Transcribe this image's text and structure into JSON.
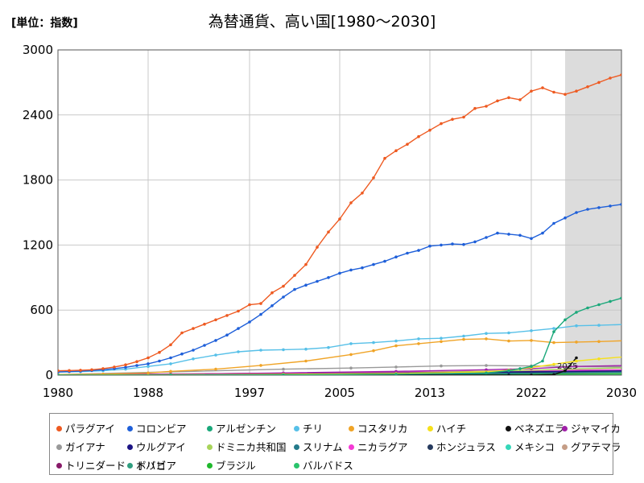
{
  "unit_label": "[単位：指数]",
  "chart_data": {
    "type": "line",
    "title": "為替通貨、高い国[1980～2030]",
    "ylim": [
      0,
      3000
    ],
    "xlim": [
      1980,
      2030
    ],
    "x_ticks": [
      "1980",
      "1988",
      "1997",
      "2005",
      "2013",
      "2022",
      "2030"
    ],
    "y_ticks": [
      "0",
      "600",
      "1200",
      "1800",
      "2400",
      "3000"
    ],
    "forecast_start": 2025,
    "forecast_label": "2025",
    "grid": true,
    "legend_position": "bottom",
    "series": [
      {
        "name": "パラグアイ",
        "color": "#ee5a21",
        "points": [
          [
            1980,
            40
          ],
          [
            1981,
            42
          ],
          [
            1982,
            45
          ],
          [
            1983,
            50
          ],
          [
            1984,
            60
          ],
          [
            1985,
            75
          ],
          [
            1986,
            95
          ],
          [
            1987,
            125
          ],
          [
            1988,
            160
          ],
          [
            1989,
            210
          ],
          [
            1990,
            280
          ],
          [
            1991,
            390
          ],
          [
            1992,
            430
          ],
          [
            1993,
            470
          ],
          [
            1994,
            510
          ],
          [
            1995,
            550
          ],
          [
            1996,
            590
          ],
          [
            1997,
            650
          ],
          [
            1998,
            660
          ],
          [
            1999,
            760
          ],
          [
            2000,
            820
          ],
          [
            2001,
            920
          ],
          [
            2002,
            1020
          ],
          [
            2003,
            1180
          ],
          [
            2004,
            1320
          ],
          [
            2005,
            1440
          ],
          [
            2006,
            1590
          ],
          [
            2007,
            1680
          ],
          [
            2008,
            1820
          ],
          [
            2009,
            2000
          ],
          [
            2010,
            2070
          ],
          [
            2011,
            2130
          ],
          [
            2012,
            2200
          ],
          [
            2013,
            2260
          ],
          [
            2014,
            2320
          ],
          [
            2015,
            2360
          ],
          [
            2016,
            2380
          ],
          [
            2017,
            2460
          ],
          [
            2018,
            2480
          ],
          [
            2019,
            2530
          ],
          [
            2020,
            2560
          ],
          [
            2021,
            2540
          ],
          [
            2022,
            2620
          ],
          [
            2023,
            2650
          ],
          [
            2024,
            2610
          ],
          [
            2025,
            2590
          ],
          [
            2026,
            2620
          ],
          [
            2027,
            2660
          ],
          [
            2028,
            2700
          ],
          [
            2029,
            2740
          ],
          [
            2030,
            2770
          ],
          [
            2031,
            2820
          ]
        ]
      },
      {
        "name": "コロンビア",
        "color": "#1e5fd9",
        "points": [
          [
            1980,
            30
          ],
          [
            1981,
            33
          ],
          [
            1982,
            37
          ],
          [
            1983,
            42
          ],
          [
            1984,
            50
          ],
          [
            1985,
            60
          ],
          [
            1986,
            72
          ],
          [
            1987,
            88
          ],
          [
            1988,
            105
          ],
          [
            1989,
            130
          ],
          [
            1990,
            160
          ],
          [
            1991,
            195
          ],
          [
            1992,
            230
          ],
          [
            1993,
            275
          ],
          [
            1994,
            320
          ],
          [
            1995,
            370
          ],
          [
            1996,
            430
          ],
          [
            1997,
            490
          ],
          [
            1998,
            560
          ],
          [
            1999,
            640
          ],
          [
            2000,
            720
          ],
          [
            2001,
            790
          ],
          [
            2002,
            830
          ],
          [
            2003,
            865
          ],
          [
            2004,
            900
          ],
          [
            2005,
            940
          ],
          [
            2006,
            970
          ],
          [
            2007,
            990
          ],
          [
            2008,
            1020
          ],
          [
            2009,
            1050
          ],
          [
            2010,
            1090
          ],
          [
            2011,
            1125
          ],
          [
            2012,
            1150
          ],
          [
            2013,
            1190
          ],
          [
            2014,
            1200
          ],
          [
            2015,
            1210
          ],
          [
            2016,
            1205
          ],
          [
            2017,
            1230
          ],
          [
            2018,
            1270
          ],
          [
            2019,
            1310
          ],
          [
            2020,
            1300
          ],
          [
            2021,
            1290
          ],
          [
            2022,
            1260
          ],
          [
            2023,
            1310
          ],
          [
            2024,
            1400
          ],
          [
            2025,
            1450
          ],
          [
            2026,
            1500
          ],
          [
            2027,
            1530
          ],
          [
            2028,
            1545
          ],
          [
            2029,
            1560
          ],
          [
            2030,
            1575
          ],
          [
            2031,
            1600
          ]
        ]
      },
      {
        "name": "アルゼンチン",
        "color": "#1aa87a",
        "points": [
          [
            1980,
            0
          ],
          [
            1990,
            1
          ],
          [
            2000,
            2
          ],
          [
            2010,
            8
          ],
          [
            2018,
            20
          ],
          [
            2020,
            40
          ],
          [
            2021,
            60
          ],
          [
            2022,
            80
          ],
          [
            2023,
            130
          ],
          [
            2024,
            400
          ],
          [
            2025,
            510
          ],
          [
            2026,
            580
          ],
          [
            2027,
            620
          ],
          [
            2028,
            650
          ],
          [
            2029,
            680
          ],
          [
            2030,
            710
          ],
          [
            2031,
            750
          ]
        ]
      },
      {
        "name": "チリ",
        "color": "#57c0e8",
        "points": [
          [
            1980,
            28
          ],
          [
            1982,
            32
          ],
          [
            1984,
            40
          ],
          [
            1986,
            55
          ],
          [
            1988,
            80
          ],
          [
            1990,
            105
          ],
          [
            1992,
            150
          ],
          [
            1994,
            185
          ],
          [
            1996,
            215
          ],
          [
            1998,
            230
          ],
          [
            2000,
            235
          ],
          [
            2002,
            240
          ],
          [
            2004,
            255
          ],
          [
            2006,
            290
          ],
          [
            2008,
            300
          ],
          [
            2010,
            315
          ],
          [
            2012,
            335
          ],
          [
            2014,
            340
          ],
          [
            2016,
            360
          ],
          [
            2018,
            385
          ],
          [
            2020,
            390
          ],
          [
            2022,
            410
          ],
          [
            2024,
            430
          ],
          [
            2026,
            455
          ],
          [
            2028,
            460
          ],
          [
            2031,
            470
          ]
        ]
      },
      {
        "name": "コスタリカ",
        "color": "#f0a427",
        "points": [
          [
            1980,
            5
          ],
          [
            1984,
            10
          ],
          [
            1988,
            20
          ],
          [
            1990,
            35
          ],
          [
            1994,
            55
          ],
          [
            1998,
            90
          ],
          [
            2002,
            130
          ],
          [
            2006,
            190
          ],
          [
            2008,
            225
          ],
          [
            2010,
            270
          ],
          [
            2012,
            290
          ],
          [
            2014,
            310
          ],
          [
            2016,
            330
          ],
          [
            2018,
            335
          ],
          [
            2020,
            315
          ],
          [
            2022,
            320
          ],
          [
            2024,
            300
          ],
          [
            2026,
            305
          ],
          [
            2028,
            310
          ],
          [
            2031,
            320
          ]
        ]
      },
      {
        "name": "ハイチ",
        "color": "#f6e01b",
        "points": [
          [
            1980,
            0
          ],
          [
            1990,
            3
          ],
          [
            2000,
            8
          ],
          [
            2010,
            15
          ],
          [
            2018,
            30
          ],
          [
            2020,
            45
          ],
          [
            2022,
            70
          ],
          [
            2024,
            100
          ],
          [
            2026,
            130
          ],
          [
            2028,
            150
          ],
          [
            2031,
            175
          ]
        ]
      },
      {
        "name": "ベネズエラ",
        "color": "#111111",
        "points": [
          [
            1980,
            0
          ],
          [
            2020,
            0
          ],
          [
            2022,
            1
          ],
          [
            2024,
            5
          ],
          [
            2025,
            40
          ],
          [
            2026,
            160
          ]
        ]
      },
      {
        "name": "ジャマイカ",
        "color": "#a020a8",
        "points": [
          [
            1980,
            2
          ],
          [
            1990,
            8
          ],
          [
            2000,
            20
          ],
          [
            2010,
            35
          ],
          [
            2018,
            50
          ],
          [
            2022,
            60
          ],
          [
            2026,
            80
          ],
          [
            2031,
            90
          ]
        ]
      },
      {
        "name": "ガイアナ",
        "color": "#999999",
        "points": [
          [
            1980,
            5
          ],
          [
            1990,
            30
          ],
          [
            2000,
            55
          ],
          [
            2006,
            65
          ],
          [
            2010,
            75
          ],
          [
            2014,
            85
          ],
          [
            2018,
            88
          ],
          [
            2022,
            85
          ],
          [
            2026,
            80
          ],
          [
            2031,
            75
          ]
        ]
      },
      {
        "name": "ウルグアイ",
        "color": "#1c1484",
        "points": [
          [
            1980,
            0
          ],
          [
            1990,
            5
          ],
          [
            2000,
            10
          ],
          [
            2010,
            20
          ],
          [
            2020,
            30
          ],
          [
            2031,
            40
          ]
        ]
      },
      {
        "name": "ドミニカ共和国",
        "color": "#a8d45a",
        "points": [
          [
            1980,
            0
          ],
          [
            1990,
            3
          ],
          [
            2000,
            8
          ],
          [
            2010,
            20
          ],
          [
            2020,
            40
          ],
          [
            2031,
            70
          ]
        ]
      },
      {
        "name": "スリナム",
        "color": "#247a8a",
        "points": [
          [
            1980,
            0
          ],
          [
            2000,
            2
          ],
          [
            2010,
            5
          ],
          [
            2020,
            15
          ],
          [
            2031,
            30
          ]
        ]
      },
      {
        "name": "ニカラグア",
        "color": "#f53ad5",
        "points": [
          [
            1980,
            0
          ],
          [
            1990,
            5
          ],
          [
            2000,
            15
          ],
          [
            2010,
            25
          ],
          [
            2020,
            40
          ],
          [
            2031,
            50
          ]
        ]
      },
      {
        "name": "ホンジュラス",
        "color": "#263a5e",
        "points": [
          [
            1980,
            0
          ],
          [
            1990,
            3
          ],
          [
            2000,
            10
          ],
          [
            2010,
            18
          ],
          [
            2020,
            25
          ],
          [
            2031,
            30
          ]
        ]
      },
      {
        "name": "メキシコ",
        "color": "#35d7b9",
        "points": [
          [
            1980,
            0
          ],
          [
            1990,
            5
          ],
          [
            2000,
            10
          ],
          [
            2010,
            15
          ],
          [
            2020,
            20
          ],
          [
            2031,
            25
          ]
        ]
      },
      {
        "name": "グアテマラ",
        "color": "#c59d86",
        "points": [
          [
            1980,
            2
          ],
          [
            1990,
            6
          ],
          [
            2000,
            10
          ],
          [
            2010,
            14
          ],
          [
            2020,
            18
          ],
          [
            2031,
            22
          ]
        ]
      },
      {
        "name": "トリニダード・トバゴ",
        "color": "#881a69",
        "points": [
          [
            1980,
            5
          ],
          [
            1990,
            10
          ],
          [
            2000,
            18
          ],
          [
            2010,
            25
          ],
          [
            2020,
            30
          ],
          [
            2031,
            35
          ]
        ]
      },
      {
        "name": "ボリビア",
        "color": "#2f9e7f",
        "points": [
          [
            1980,
            3
          ],
          [
            1990,
            6
          ],
          [
            2000,
            10
          ],
          [
            2010,
            15
          ],
          [
            2020,
            20
          ],
          [
            2031,
            25
          ]
        ]
      },
      {
        "name": "ブラジル",
        "color": "#1fb82c",
        "points": [
          [
            1980,
            0
          ],
          [
            1990,
            1
          ],
          [
            2000,
            3
          ],
          [
            2010,
            6
          ],
          [
            2020,
            10
          ],
          [
            2031,
            15
          ]
        ]
      },
      {
        "name": "バルバドス",
        "color": "#2ac46c",
        "points": [
          [
            1980,
            1
          ],
          [
            1990,
            2
          ],
          [
            2000,
            4
          ],
          [
            2010,
            6
          ],
          [
            2020,
            8
          ],
          [
            2031,
            10
          ]
        ]
      }
    ]
  }
}
